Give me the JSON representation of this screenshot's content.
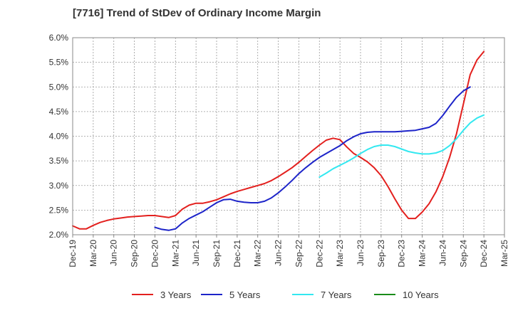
{
  "chart_data": {
    "type": "line",
    "title": "[7716]  Trend of StDev of Ordinary Income Margin",
    "xlabel": "",
    "ylabel": "",
    "x_ticks": [
      "Dec-19",
      "Mar-20",
      "Jun-20",
      "Sep-20",
      "Dec-20",
      "Mar-21",
      "Jun-21",
      "Sep-21",
      "Dec-21",
      "Mar-22",
      "Jun-22",
      "Sep-22",
      "Dec-22",
      "Mar-23",
      "Jun-23",
      "Sep-23",
      "Dec-23",
      "Mar-24",
      "Jun-24",
      "Sep-24",
      "Dec-24",
      "Mar-25"
    ],
    "y_ticks": [
      "2.0%",
      "2.5%",
      "3.0%",
      "3.5%",
      "4.0%",
      "4.5%",
      "5.0%",
      "5.5%",
      "6.0%"
    ],
    "ylim": [
      2.0,
      6.0
    ],
    "grid": true,
    "legend_position": "bottom",
    "series": [
      {
        "name": "3 Years",
        "color": "#e3201e",
        "start_index": 0,
        "values": [
          2.18,
          2.12,
          2.12,
          2.19,
          2.25,
          2.29,
          2.32,
          2.34,
          2.36,
          2.37,
          2.38,
          2.39,
          2.39,
          2.37,
          2.35,
          2.39,
          2.52,
          2.6,
          2.64,
          2.64,
          2.67,
          2.71,
          2.77,
          2.83,
          2.88,
          2.92,
          2.96,
          3.0,
          3.04,
          3.1,
          3.18,
          3.27,
          3.36,
          3.47,
          3.59,
          3.71,
          3.82,
          3.92,
          3.96,
          3.93,
          3.78,
          3.65,
          3.57,
          3.48,
          3.36,
          3.2,
          2.98,
          2.73,
          2.5,
          2.33,
          2.33,
          2.46,
          2.63,
          2.87,
          3.18,
          3.57,
          4.05,
          4.65,
          5.25,
          5.55,
          5.72
        ]
      },
      {
        "name": "5 Years",
        "color": "#1d24c9",
        "start_index": 12,
        "values": [
          2.15,
          2.11,
          2.09,
          2.12,
          2.24,
          2.33,
          2.4,
          2.47,
          2.56,
          2.65,
          2.71,
          2.72,
          2.68,
          2.66,
          2.65,
          2.65,
          2.68,
          2.75,
          2.85,
          2.97,
          3.1,
          3.24,
          3.36,
          3.47,
          3.57,
          3.65,
          3.73,
          3.81,
          3.91,
          3.99,
          4.05,
          4.08,
          4.09,
          4.09,
          4.09,
          4.09,
          4.1,
          4.11,
          4.12,
          4.15,
          4.18,
          4.26,
          4.42,
          4.61,
          4.79,
          4.92,
          5.0
        ]
      },
      {
        "name": "7 Years",
        "color": "#33e8f0",
        "start_index": 36,
        "values": [
          3.17,
          3.25,
          3.34,
          3.41,
          3.48,
          3.56,
          3.65,
          3.73,
          3.79,
          3.82,
          3.82,
          3.79,
          3.74,
          3.69,
          3.66,
          3.64,
          3.64,
          3.66,
          3.71,
          3.81,
          3.95,
          4.12,
          4.27,
          4.37,
          4.43
        ]
      },
      {
        "name": "10 Years",
        "color": "#1a8c1a",
        "start_index": 0,
        "values": []
      }
    ]
  }
}
